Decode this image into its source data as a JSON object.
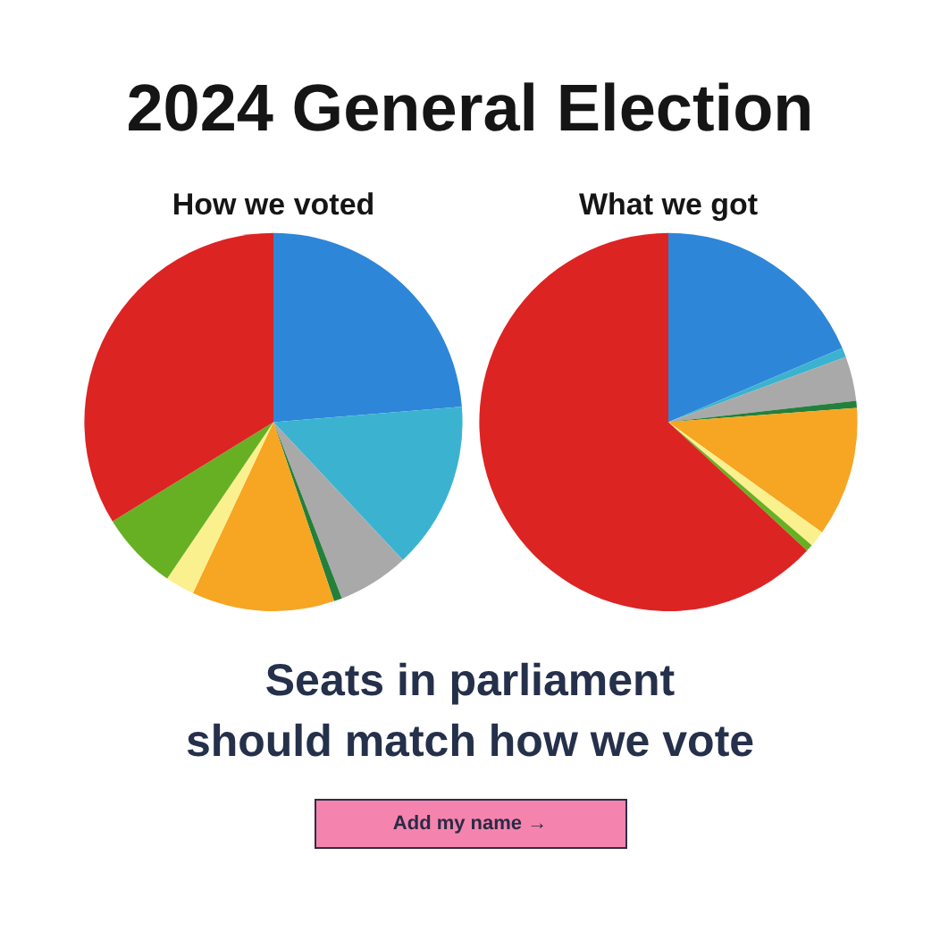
{
  "chart_data": [
    {
      "type": "other",
      "title": "2024 General Election"
    },
    {
      "type": "pie",
      "title": "How we voted",
      "categories": [
        null,
        null,
        null,
        null,
        null,
        null,
        null,
        null
      ],
      "values": [
        23.7,
        14.3,
        6.1,
        0.7,
        12.2,
        2.5,
        6.7,
        33.8
      ],
      "colors": [
        "#2e86d9",
        "#3bb3d0",
        "#a9a9a9",
        "#23803a",
        "#f6a623",
        "#fbf08e",
        "#68b023",
        "#dc2423"
      ]
    },
    {
      "type": "pie",
      "title": "What we got",
      "categories": [
        null,
        null,
        null,
        null,
        null,
        null,
        null,
        null
      ],
      "values": [
        18.6,
        0.8,
        3.8,
        0.6,
        11.1,
        1.4,
        0.6,
        63.1
      ],
      "colors": [
        "#2e86d9",
        "#3bb3d0",
        "#a9a9a9",
        "#23803a",
        "#f6a623",
        "#fbf08e",
        "#68b023",
        "#dc2423"
      ]
    },
    {
      "type": "other",
      "title": "Seats in parliament should match how we vote",
      "annotations": [
        "Add my name →"
      ]
    }
  ]
}
